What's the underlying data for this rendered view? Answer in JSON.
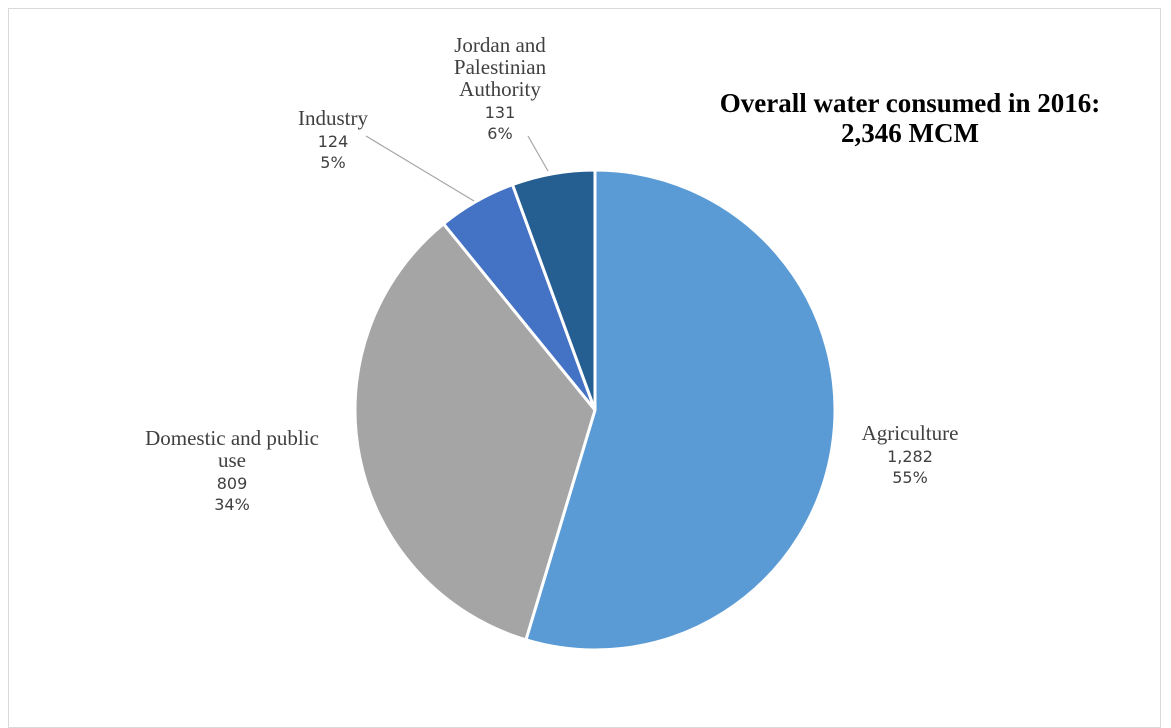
{
  "chart_data": {
    "type": "pie",
    "title_line1": "Overall water consumed in 2016:",
    "title_line2": "2,346 MCM",
    "categories": [
      "Agriculture",
      "Domestic and public use",
      "Industry",
      "Jordan and Palestinian Authority"
    ],
    "values": [
      1282,
      809,
      124,
      131
    ],
    "value_labels": [
      "1,282",
      "809",
      "124",
      "131"
    ],
    "percent_labels": [
      "55%",
      "34%",
      "5%",
      "6%"
    ],
    "label_lines": [
      [
        "Agriculture"
      ],
      [
        "Domestic and public",
        "use"
      ],
      [
        "Industry"
      ],
      [
        "Jordan and",
        "Palestinian",
        "Authority"
      ]
    ],
    "colors": [
      "#5b9bd5",
      "#a5a5a5",
      "#4472c4",
      "#255e91"
    ],
    "slice_order": [
      0,
      1,
      2,
      3
    ],
    "start_angle_deg": 0,
    "direction": "clockwise",
    "legend": "none",
    "data_labels": "outside"
  }
}
